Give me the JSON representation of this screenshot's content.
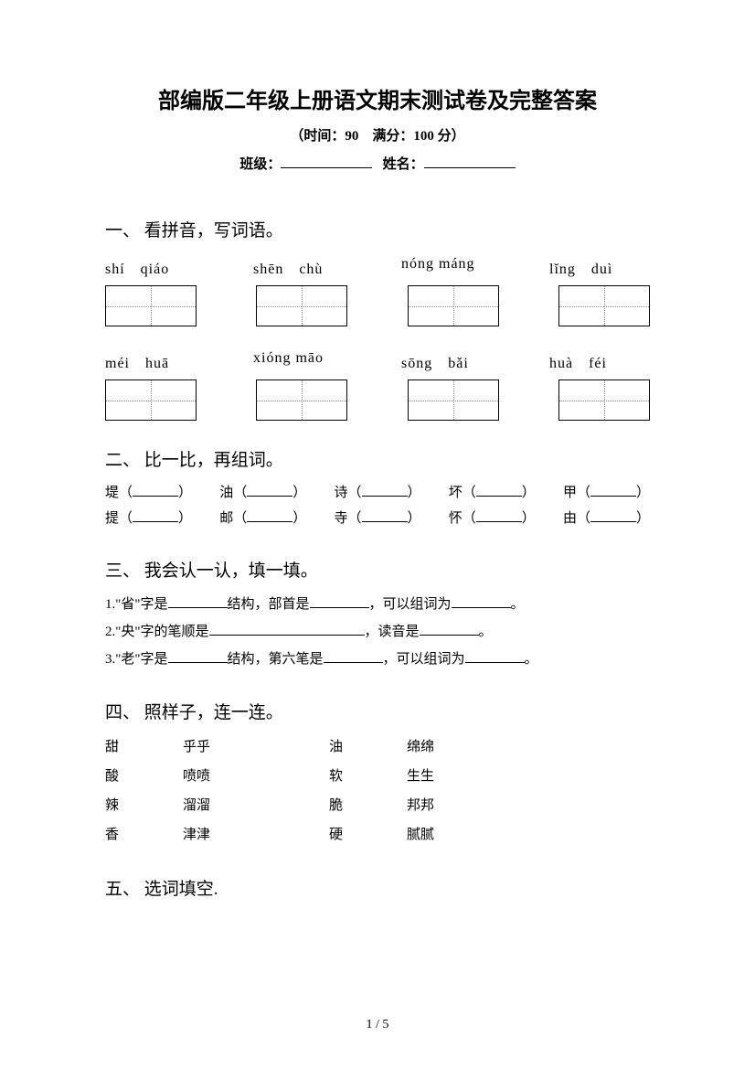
{
  "title": "部编版二年级上册语文期末测试卷及完整答案",
  "subtitle": "（时间：90　满分：100 分）",
  "class_label": "班级：",
  "name_label": "姓名：",
  "sections": {
    "s1": {
      "heading": "一、 看拼音，写词语。",
      "row1": [
        "shí　qiáo",
        "shēn　chù",
        "nóng máng",
        "lǐng　duì"
      ],
      "row2": [
        "méi　huā",
        "xióng māo",
        "sōng　bǎi",
        "huà　féi"
      ]
    },
    "s2": {
      "heading": "二、 比一比，再组词。",
      "line1": [
        {
          "char": "堤"
        },
        {
          "char": "油"
        },
        {
          "char": "诗"
        },
        {
          "char": "坏"
        },
        {
          "char": "甲"
        }
      ],
      "line2": [
        {
          "char": "提"
        },
        {
          "char": "邮"
        },
        {
          "char": "寺"
        },
        {
          "char": "怀"
        },
        {
          "char": "由"
        }
      ]
    },
    "s3": {
      "heading": "三、 我会认一认，填一填。",
      "q1_a": "1.\"省\"字是",
      "q1_b": "结构，部首是",
      "q1_c": "，可以组词为",
      "q1_d": "。",
      "q2_a": "2.\"央\"字的笔顺是",
      "q2_b": "，读音是",
      "q2_c": "。",
      "q3_a": "3.\"老\"字是",
      "q3_b": "结构，第六笔是",
      "q3_c": "，可以组词为",
      "q3_d": "。"
    },
    "s4": {
      "heading": "四、 照样子，连一连。",
      "left": {
        "col1": [
          "甜",
          "酸",
          "辣",
          "香"
        ],
        "col2": [
          "乎乎",
          "喷喷",
          "溜溜",
          "津津"
        ]
      },
      "right": {
        "col1": [
          "油",
          "软",
          "脆",
          "硬"
        ],
        "col2": [
          "绵绵",
          "生生",
          "邦邦",
          "腻腻"
        ]
      }
    },
    "s5": {
      "heading": "五、 选词填空."
    }
  },
  "footer": "1 / 5"
}
